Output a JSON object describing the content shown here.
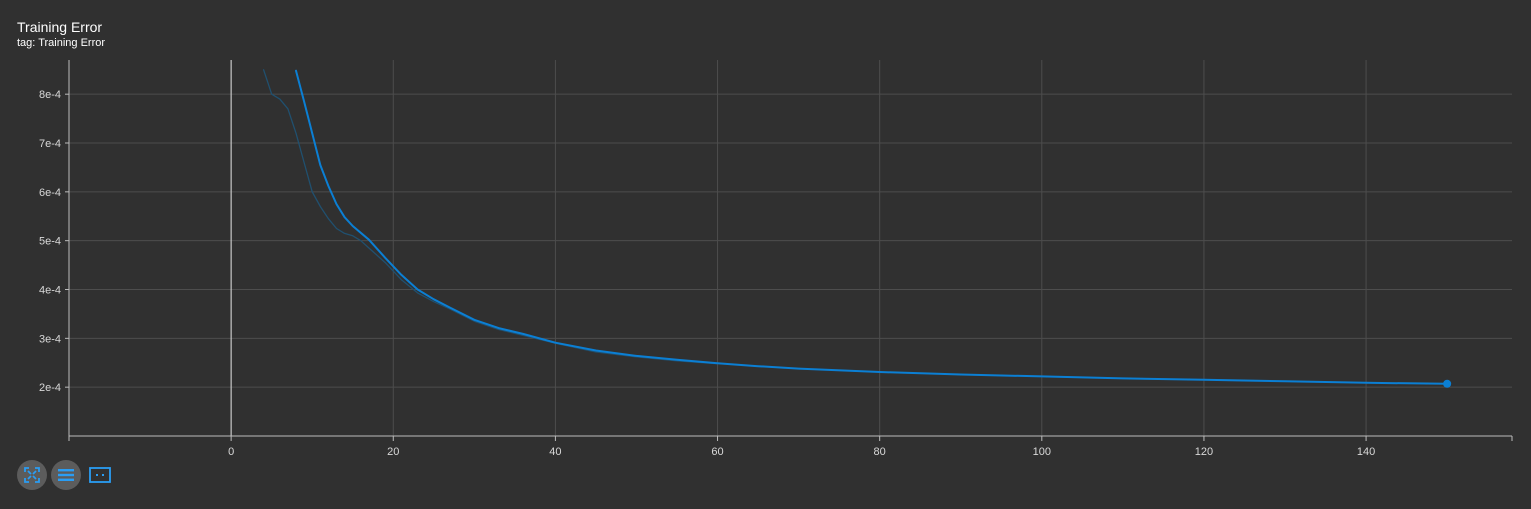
{
  "card": {
    "title": "Training Error",
    "subtitle": "tag: Training Error"
  },
  "toolbar": {
    "buttons": [
      {
        "icon": "fit-domain-icon"
      },
      {
        "icon": "list-icon"
      },
      {
        "icon": "select-region-icon"
      }
    ]
  },
  "colors": {
    "background": "#303030",
    "smoothed_line": "#0b7fd4",
    "raw_line": "#20506f",
    "axis": "#bcbcbc",
    "grid": "#4d4d4d"
  },
  "chart_data": {
    "type": "line",
    "grid": true,
    "xlim": [
      -20,
      158
    ],
    "ylim": [
      0.0001,
      0.00087
    ],
    "x_ticks": [
      0,
      20,
      40,
      60,
      80,
      100,
      120,
      140
    ],
    "x_tick_labels": [
      "0",
      "20",
      "40",
      "60",
      "80",
      "100",
      "120",
      "140"
    ],
    "y_ticks": [
      0.0002,
      0.0003,
      0.0004,
      0.0005,
      0.0006,
      0.0007,
      0.0008
    ],
    "y_tick_labels": [
      "2e-4",
      "3e-4",
      "4e-4",
      "5e-4",
      "6e-4",
      "7e-4",
      "8e-4"
    ],
    "series": [
      {
        "role": "smoothed",
        "x": [
          8,
          9,
          10,
          11,
          12,
          13,
          14,
          15,
          17,
          19,
          21,
          23,
          25,
          27,
          30,
          33,
          36,
          40,
          45,
          50,
          55,
          60,
          65,
          70,
          80,
          90,
          100,
          110,
          120,
          130,
          140,
          150
        ],
        "y": [
          0.000848,
          0.000785,
          0.00072,
          0.000655,
          0.000612,
          0.000575,
          0.000548,
          0.00053,
          0.000502,
          0.000465,
          0.00043,
          0.0004,
          0.00038,
          0.000363,
          0.000338,
          0.000321,
          0.000309,
          0.000291,
          0.000275,
          0.000264,
          0.000256,
          0.000249,
          0.000243,
          0.000238,
          0.000231,
          0.000226,
          0.000222,
          0.000218,
          0.000215,
          0.000212,
          0.000209,
          0.000207
        ]
      },
      {
        "role": "raw",
        "x": [
          4,
          5,
          6,
          7,
          8,
          9,
          10,
          11,
          12,
          13,
          14,
          15,
          16,
          17,
          19,
          21,
          23,
          25,
          27,
          30,
          33,
          36,
          40,
          45,
          50,
          55,
          60
        ],
        "y": [
          0.00085,
          0.0008,
          0.00079,
          0.00077,
          0.00072,
          0.00066,
          0.0006,
          0.00057,
          0.000545,
          0.000525,
          0.000515,
          0.00051,
          0.0005,
          0.000485,
          0.000455,
          0.00042,
          0.000393,
          0.000375,
          0.00036,
          0.000335,
          0.000318,
          0.000306,
          0.00029,
          0.000272,
          0.000262,
          0.000254,
          0.000248
        ]
      }
    ],
    "last_point": {
      "x": 150,
      "y": 0.000207
    }
  }
}
